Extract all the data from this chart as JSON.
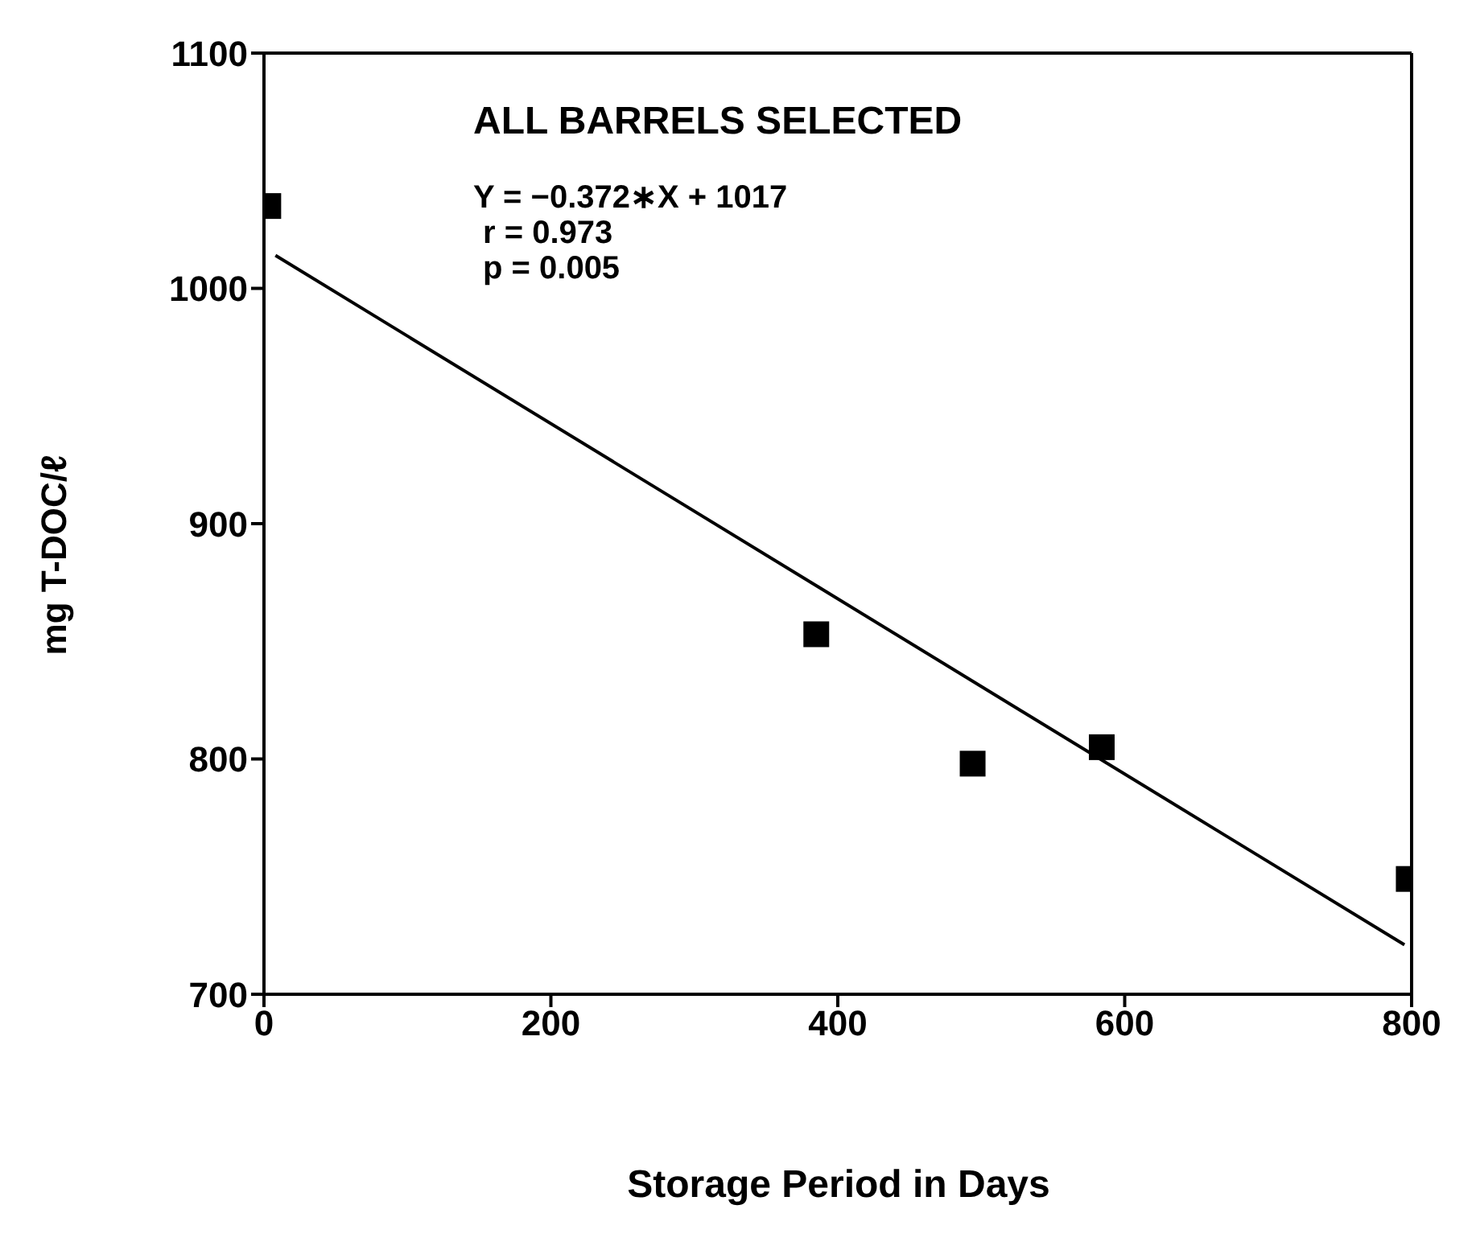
{
  "chart_data": {
    "type": "scatter",
    "title": "ALL BARRELS SELECTED",
    "xlabel": "Storage Period in Days",
    "ylabel": "mg T-DOC/ℓ",
    "annotations": [
      "Y = −0.372∗X + 1017",
      "r = 0.973",
      "p = 0.005"
    ],
    "series": [
      {
        "color": "#000000",
        "marker": "square",
        "x": [
          3,
          385,
          494,
          584,
          798
        ],
        "values": [
          1035,
          853,
          798,
          805,
          749
        ]
      },
      {
        "type": "line",
        "color": "#000000",
        "marker": "none",
        "line_style": "solid",
        "x": [
          8,
          795
        ],
        "values": [
          1014,
          721
        ]
      }
    ],
    "xlim": [
      0,
      800
    ],
    "xticks": [
      0,
      200,
      400,
      600,
      800
    ],
    "ylim": [
      700,
      1100
    ],
    "yticks": [
      700,
      800,
      900,
      1000,
      1100
    ],
    "grid": false
  }
}
